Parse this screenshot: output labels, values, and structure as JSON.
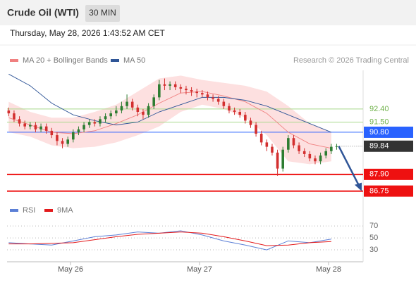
{
  "chart_data": {
    "type": "candlestick",
    "title": "Crude Oil (WTI)",
    "interval": "30 MIN",
    "timestamp": "Thursday, May 28, 2026 1:43:52 AM CET",
    "source": "Research © 2026 Trading Central",
    "xlim": [
      0,
      134
    ],
    "xticks": [
      {
        "value": 24,
        "label": "May 26"
      },
      {
        "value": 72,
        "label": "May 27"
      },
      {
        "value": 120,
        "label": "May 28"
      }
    ],
    "ylim": [
      86.1,
      95.3
    ],
    "up_color": "#2e7d32",
    "down_color": "#d32f2f",
    "candles": {
      "x": [
        1,
        3,
        5,
        7,
        9,
        11,
        13,
        15,
        17,
        19,
        21,
        23,
        25,
        27,
        29,
        31,
        33,
        35,
        37,
        39,
        41,
        43,
        45,
        47,
        49,
        51,
        53,
        55,
        57,
        59,
        61,
        63,
        65,
        67,
        69,
        71,
        73,
        75,
        77,
        79,
        81,
        83,
        85,
        87,
        89,
        91,
        93,
        95,
        97,
        99,
        101,
        103,
        105,
        107,
        109,
        111,
        113,
        115,
        117,
        119,
        121,
        123
      ],
      "open": [
        92.3,
        92.1,
        91.7,
        91.4,
        91.2,
        91.3,
        91.0,
        91.2,
        90.9,
        90.6,
        90.2,
        90.0,
        90.3,
        90.8,
        91.0,
        91.3,
        91.5,
        91.4,
        91.7,
        91.9,
        92.1,
        92.3,
        92.6,
        92.9,
        92.5,
        92.2,
        92.0,
        92.6,
        93.2,
        94.1,
        94.0,
        94.1,
        93.9,
        93.8,
        93.7,
        93.6,
        93.5,
        93.4,
        93.2,
        93.1,
        92.9,
        92.6,
        92.3,
        92.2,
        92.0,
        91.6,
        91.3,
        90.7,
        90.1,
        89.8,
        89.4,
        88.3,
        89.6,
        90.4,
        89.9,
        89.5,
        89.3,
        89.0,
        88.8,
        89.2,
        89.5,
        89.8
      ],
      "high": [
        92.5,
        92.3,
        91.9,
        91.6,
        91.5,
        91.5,
        91.4,
        91.4,
        91.1,
        90.8,
        90.4,
        90.5,
        91.0,
        91.2,
        91.5,
        91.7,
        91.7,
        91.9,
        92.1,
        92.3,
        92.6,
        92.9,
        93.4,
        93.1,
        92.7,
        92.4,
        92.8,
        93.4,
        94.4,
        94.5,
        94.3,
        94.3,
        94.1,
        94.0,
        93.9,
        93.8,
        93.7,
        93.6,
        93.4,
        93.3,
        93.1,
        92.8,
        92.5,
        92.4,
        92.2,
        91.8,
        91.5,
        90.9,
        90.3,
        90.0,
        89.6,
        89.8,
        90.6,
        90.6,
        90.1,
        89.7,
        89.5,
        89.2,
        89.4,
        89.7,
        90.0,
        90.0
      ],
      "low": [
        91.9,
        91.5,
        91.2,
        91.0,
        91.0,
        90.8,
        90.8,
        90.7,
        90.4,
        89.9,
        89.7,
        89.8,
        90.1,
        90.6,
        90.8,
        91.1,
        91.2,
        91.2,
        91.5,
        91.7,
        91.9,
        92.1,
        92.4,
        92.3,
        91.9,
        91.7,
        91.8,
        92.4,
        93.0,
        93.7,
        93.7,
        93.7,
        93.5,
        93.4,
        93.3,
        93.2,
        93.2,
        93.0,
        92.9,
        92.7,
        92.4,
        92.1,
        92.0,
        91.8,
        91.4,
        91.1,
        90.5,
        89.9,
        89.5,
        89.2,
        87.8,
        88.1,
        89.4,
        89.7,
        89.3,
        89.1,
        88.8,
        88.6,
        88.6,
        89.0,
        89.3,
        89.6
      ],
      "close": [
        92.1,
        91.7,
        91.4,
        91.2,
        91.3,
        91.0,
        91.2,
        90.9,
        90.6,
        90.2,
        90.0,
        90.3,
        90.8,
        91.0,
        91.3,
        91.5,
        91.4,
        91.7,
        91.9,
        92.1,
        92.3,
        92.6,
        92.9,
        92.5,
        92.2,
        92.0,
        92.6,
        93.2,
        94.1,
        94.0,
        94.1,
        93.9,
        93.8,
        93.7,
        93.6,
        93.5,
        93.4,
        93.2,
        93.1,
        92.9,
        92.6,
        92.3,
        92.2,
        92.0,
        91.6,
        91.3,
        90.7,
        90.1,
        89.8,
        89.4,
        88.3,
        89.6,
        90.4,
        89.9,
        89.5,
        89.3,
        89.0,
        88.8,
        89.2,
        89.5,
        89.8,
        89.84
      ]
    },
    "x": [
      1,
      9,
      17,
      25,
      33,
      41,
      49,
      57,
      65,
      73,
      81,
      89,
      97,
      105,
      113,
      121
    ],
    "series": [
      {
        "name": "MA 20 + Bollinger Bands",
        "color": "#f08080",
        "values": [
          91.8,
          91.3,
          90.8,
          90.7,
          90.9,
          91.4,
          92.0,
          92.8,
          93.5,
          93.6,
          93.3,
          92.9,
          92.1,
          90.8,
          90.0,
          89.7
        ]
      },
      {
        "name": "MA 50",
        "color": "#2f5597",
        "values": [
          94.8,
          94.0,
          92.8,
          92.0,
          91.6,
          91.3,
          91.5,
          92.2,
          92.7,
          93.2,
          93.2,
          93.0,
          92.6,
          92.0,
          91.4,
          90.8
        ]
      }
    ],
    "band": {
      "color": "#fde0e0",
      "upper": [
        92.9,
        92.2,
        91.8,
        91.8,
        92.2,
        92.7,
        93.6,
        94.5,
        94.7,
        94.4,
        94.2,
        94.0,
        93.6,
        92.6,
        91.4,
        90.8
      ],
      "lower": [
        90.8,
        90.5,
        89.9,
        89.7,
        89.8,
        90.1,
        90.6,
        91.2,
        92.2,
        92.7,
        92.4,
        91.8,
        90.6,
        88.8,
        88.6,
        88.8
      ]
    },
    "levels": [
      {
        "value": 92.4,
        "label": "92.40",
        "color": "#a8d88a",
        "style": "resistance"
      },
      {
        "value": 91.5,
        "label": "91.50",
        "color": "#a8d88a",
        "style": "resistance"
      },
      {
        "value": 90.8,
        "label": "90.80",
        "color": "#2962ff",
        "style": "pivot"
      },
      {
        "value": 89.84,
        "label": "89.84",
        "color": "#333333",
        "style": "last"
      },
      {
        "value": 87.9,
        "label": "87.90",
        "color": "#ee1111",
        "style": "support"
      },
      {
        "value": 86.75,
        "label": "86.75",
        "color": "#ee1111",
        "style": "support"
      }
    ],
    "rsi": {
      "ylim": [
        10,
        82
      ],
      "yticks": [
        70,
        50,
        30
      ],
      "series": [
        {
          "name": "RSI",
          "color": "#5b7fd6",
          "values": [
            42,
            40,
            38,
            45,
            52,
            55,
            60,
            58,
            62,
            55,
            45,
            38,
            30,
            45,
            42,
            48
          ]
        },
        {
          "name": "9MA",
          "color": "#e31a1c",
          "values": [
            40,
            40,
            41,
            42,
            47,
            52,
            56,
            58,
            60,
            58,
            52,
            45,
            37,
            38,
            42,
            44
          ]
        }
      ]
    }
  }
}
